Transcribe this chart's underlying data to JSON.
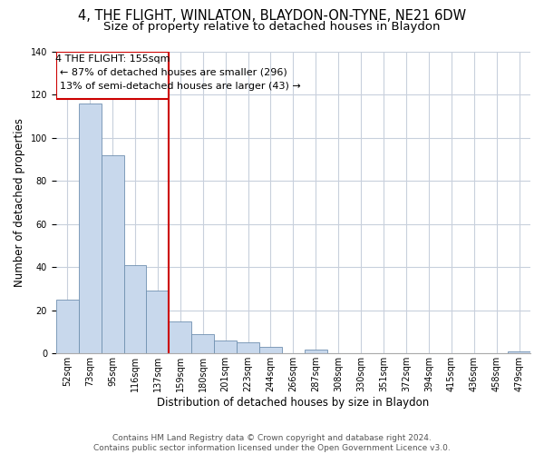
{
  "title": "4, THE FLIGHT, WINLATON, BLAYDON-ON-TYNE, NE21 6DW",
  "subtitle": "Size of property relative to detached houses in Blaydon",
  "xlabel": "Distribution of detached houses by size in Blaydon",
  "ylabel": "Number of detached properties",
  "categories": [
    "52sqm",
    "73sqm",
    "95sqm",
    "116sqm",
    "137sqm",
    "159sqm",
    "180sqm",
    "201sqm",
    "223sqm",
    "244sqm",
    "266sqm",
    "287sqm",
    "308sqm",
    "330sqm",
    "351sqm",
    "372sqm",
    "394sqm",
    "415sqm",
    "436sqm",
    "458sqm",
    "479sqm"
  ],
  "values": [
    25,
    116,
    92,
    41,
    29,
    15,
    9,
    6,
    5,
    3,
    0,
    2,
    0,
    0,
    0,
    0,
    0,
    0,
    0,
    0,
    1
  ],
  "bar_color": "#c8d8ec",
  "bar_edge_color": "#7090b0",
  "grid_color": "#c8d0dc",
  "ref_line_index": 5,
  "reference_line_label": "4 THE FLIGHT: 155sqm",
  "annotation_line1": "← 87% of detached houses are smaller (296)",
  "annotation_line2": "13% of semi-detached houses are larger (43) →",
  "annotation_box_color": "#ffffff",
  "annotation_box_edge": "#cc0000",
  "ref_line_color": "#cc0000",
  "ylim": [
    0,
    140
  ],
  "footer1": "Contains HM Land Registry data © Crown copyright and database right 2024.",
  "footer2": "Contains public sector information licensed under the Open Government Licence v3.0.",
  "title_fontsize": 10.5,
  "subtitle_fontsize": 9.5,
  "axis_label_fontsize": 8.5,
  "tick_fontsize": 7,
  "annotation_fontsize": 8,
  "footer_fontsize": 6.5
}
